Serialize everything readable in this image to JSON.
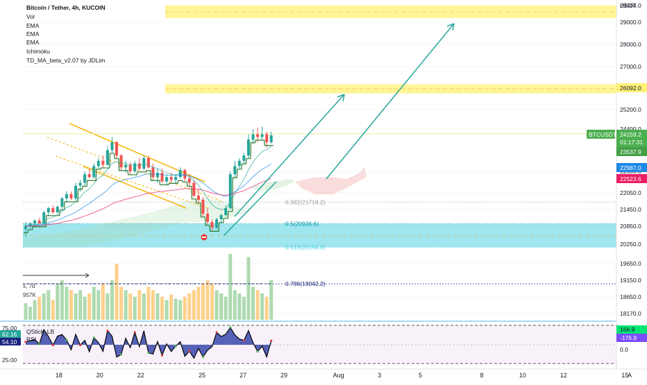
{
  "header": {
    "title": "Bitcoin / Tether, 4h, KUCOIN",
    "indicators": [
      "Vol",
      "EMA",
      "EMA",
      "EMA",
      "Ichimoku",
      "TD_MA_beta_v2.07 by JDLim"
    ]
  },
  "price_axis": {
    "currency": "USDT",
    "ticks": [
      "29000.0",
      "28000.0",
      "27000.0",
      "25200.0",
      "24400.0",
      "22800.0",
      "22050.0",
      "21450.0",
      "20850.0",
      "20250.0",
      "19650.0",
      "19150.0",
      "18650.0",
      "18170.0"
    ],
    "top_label": "29404.0"
  },
  "price_badges": {
    "symbol_label": "BTCUSDT",
    "last_price": "24159.2",
    "countdown": "01:17:31",
    "ema1": "23537.9",
    "ema2": "22987.0",
    "ema3": "22523.6",
    "zone_level": "26092.0"
  },
  "fib_levels": [
    {
      "label": "0.382(21718.2)",
      "price": 21718.2,
      "color": "#9e9e9e"
    },
    {
      "label": "0.5(20936.6)",
      "price": 20936.6,
      "color": "#0097a7"
    },
    {
      "label": "0.618(20156.0)",
      "price": 20156.0,
      "color": "#4dd0e1"
    },
    {
      "label": "0.786(19042.2)",
      "price": 19042.2,
      "color": "#1a237e"
    }
  ],
  "zones": {
    "upper_resistance": {
      "from": 29100,
      "to": 29404,
      "color": "#fff176"
    },
    "resistance": {
      "from": 25850,
      "to": 26230,
      "color": "#fff176"
    },
    "support": {
      "from": 20156,
      "to": 20936.6,
      "color": "#80deea"
    }
  },
  "volume_legend": {
    "period": "s, 7d",
    "value": "957K"
  },
  "oscillator": {
    "name": "QStick_LB",
    "rsi_label": "RSI",
    "axis_left": [
      "75.00",
      "25.00"
    ],
    "value1": "62.16",
    "value2": "54.10",
    "right_value1": "166.9",
    "right_value2": "-176.9",
    "right_zero": "0.0"
  },
  "time_axis": {
    "labels": [
      {
        "t": "18",
        "x": 2
      },
      {
        "t": "20",
        "x": 14
      },
      {
        "t": "22",
        "x": 26
      },
      {
        "t": "25",
        "x": 44
      },
      {
        "t": "27",
        "x": 56
      },
      {
        "t": "29",
        "x": 68
      },
      {
        "t": "Aug",
        "x": 84
      },
      {
        "t": "3",
        "x": 96
      },
      {
        "t": "5",
        "x": 108
      },
      {
        "t": "8",
        "x": 126
      },
      {
        "t": "10",
        "x": 138
      },
      {
        "t": "12",
        "x": 150
      },
      {
        "t": "15",
        "x": 168
      }
    ],
    "corner": "A"
  },
  "chart_data": {
    "type": "candlestick",
    "title": "Bitcoin / Tether, 4h, KUCOIN",
    "ylabel": "USDT",
    "ylim": [
      17900,
      29500
    ],
    "x_unit": "4h bars",
    "candles": [
      [
        20750,
        21000,
        20500,
        20850
      ],
      [
        20850,
        21000,
        20750,
        20950
      ],
      [
        20950,
        21100,
        20850,
        21050
      ],
      [
        21050,
        21150,
        20950,
        20950
      ],
      [
        20950,
        21400,
        20900,
        21350
      ],
      [
        21350,
        21550,
        21200,
        21500
      ],
      [
        21500,
        21600,
        21300,
        21350
      ],
      [
        21350,
        21600,
        21300,
        21550
      ],
      [
        21550,
        21900,
        21450,
        21850
      ],
      [
        21850,
        22100,
        21700,
        22000
      ],
      [
        22000,
        22100,
        21800,
        21850
      ],
      [
        21850,
        22400,
        21800,
        22300
      ],
      [
        22300,
        22500,
        22100,
        22400
      ],
      [
        22400,
        22800,
        22300,
        22700
      ],
      [
        22700,
        22900,
        22550,
        22600
      ],
      [
        22600,
        23100,
        22550,
        23000
      ],
      [
        23000,
        23300,
        22900,
        23200
      ],
      [
        23200,
        23400,
        22950,
        23050
      ],
      [
        23050,
        23750,
        23000,
        23600
      ],
      [
        23600,
        24100,
        23500,
        23900
      ],
      [
        23900,
        23950,
        23300,
        23400
      ],
      [
        23400,
        23450,
        22850,
        22950
      ],
      [
        22950,
        23200,
        22750,
        23050
      ],
      [
        23050,
        23150,
        22700,
        22800
      ],
      [
        22800,
        23200,
        22750,
        23100
      ],
      [
        23100,
        23300,
        22850,
        22900
      ],
      [
        22900,
        23400,
        22850,
        23300
      ],
      [
        23300,
        23400,
        22900,
        22950
      ],
      [
        22950,
        23100,
        22500,
        22600
      ],
      [
        22600,
        22900,
        22400,
        22750
      ],
      [
        22750,
        22900,
        22400,
        22450
      ],
      [
        22450,
        22700,
        22300,
        22600
      ],
      [
        22600,
        22750,
        22400,
        22500
      ],
      [
        22500,
        22700,
        22350,
        22600
      ],
      [
        22600,
        22950,
        22550,
        22850
      ],
      [
        22850,
        22900,
        22450,
        22550
      ],
      [
        22550,
        22700,
        22300,
        22400
      ],
      [
        22400,
        22500,
        21900,
        21950
      ],
      [
        21950,
        22200,
        21700,
        21800
      ],
      [
        21800,
        21900,
        21200,
        21300
      ],
      [
        21300,
        21500,
        20900,
        21000
      ],
      [
        21000,
        21100,
        20700,
        20800
      ],
      [
        20800,
        21150,
        20750,
        21100
      ],
      [
        21100,
        21300,
        20950,
        21250
      ],
      [
        21250,
        21600,
        21200,
        21500
      ],
      [
        21500,
        22800,
        21450,
        22700
      ],
      [
        22700,
        23200,
        22600,
        23000
      ],
      [
        23000,
        23300,
        22900,
        23200
      ],
      [
        23200,
        23500,
        23050,
        23400
      ],
      [
        23400,
        24200,
        23300,
        24000
      ],
      [
        24000,
        24400,
        23850,
        24200
      ],
      [
        24200,
        24450,
        23900,
        24100
      ],
      [
        24100,
        24500,
        24000,
        24200
      ],
      [
        24200,
        24300,
        23700,
        23900
      ],
      [
        23900,
        24300,
        23850,
        24159
      ]
    ],
    "volume": [
      25,
      20,
      30,
      35,
      40,
      45,
      30,
      55,
      60,
      50,
      45,
      40,
      45,
      35,
      40,
      50,
      45,
      55,
      40,
      60,
      85,
      50,
      45,
      40,
      35,
      45,
      40,
      50,
      45,
      40,
      35,
      30,
      38,
      32,
      30,
      35,
      40,
      45,
      50,
      55,
      60,
      55,
      45,
      40,
      35,
      100,
      45,
      40,
      35,
      95,
      50,
      45,
      40,
      35,
      60
    ]
  }
}
